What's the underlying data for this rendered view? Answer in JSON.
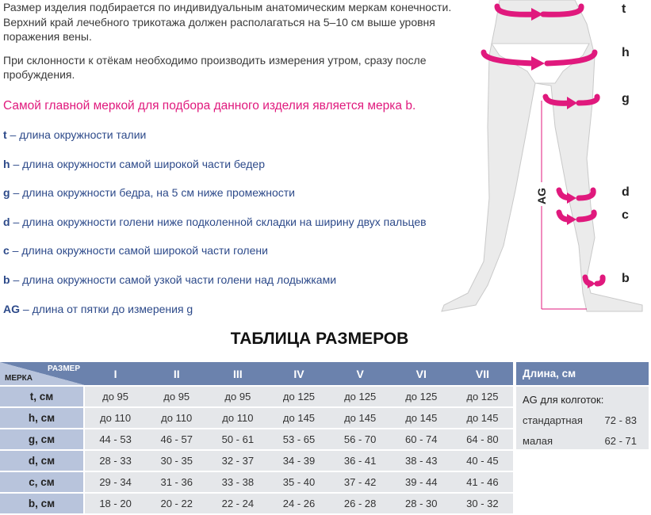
{
  "intro": {
    "p1": "Размер изделия подбирается по индивидуальным анатомическим меркам конечности. Верхний край лечебного трикотажа должен располагаться на 5–10 см выше уровня поражения вены.",
    "p2": "При склонности к отёкам необходимо производить измерения утром, сразу после пробуждения."
  },
  "key_note": "Самой главной меркой для подбора данного изделия является мерка b.",
  "legend": [
    {
      "code": "t",
      "text": " – длина окружности талии"
    },
    {
      "code": "h",
      "text": " – длина окружности самой широкой части бедер"
    },
    {
      "code": "g",
      "text": " – длина окружности бедра, на 5 см ниже промежности"
    },
    {
      "code": "d",
      "text": " – длина окружности голени ниже подколенной складки на ширину двух пальцев"
    },
    {
      "code": "c",
      "text": " – длина окружности самой широкой части голени"
    },
    {
      "code": "b",
      "text": " – длина окружности самой узкой части голени над лодыжками"
    },
    {
      "code": "AG",
      "text": " – длина от пятки до измерения g"
    }
  ],
  "figure": {
    "labels": [
      "t",
      "h",
      "g",
      "d",
      "c",
      "b"
    ],
    "ag_label": "AG",
    "accent": "#e0197d"
  },
  "table_title": "ТАБЛИЦА РАЗМЕРОВ",
  "size_table": {
    "corner_size": "РАЗМЕР",
    "corner_measure": "МЕРКА",
    "sizes": [
      "I",
      "II",
      "III",
      "IV",
      "V",
      "VI",
      "VII"
    ],
    "rows": [
      {
        "label": "t, см",
        "values": [
          "до 95",
          "до 95",
          "до 95",
          "до 125",
          "до 125",
          "до 125",
          "до 125"
        ]
      },
      {
        "label": "h, см",
        "values": [
          "до 110",
          "до 110",
          "до 110",
          "до 145",
          "до 145",
          "до 145",
          "до 145"
        ]
      },
      {
        "label": "g, см",
        "values": [
          "44 - 53",
          "46 - 57",
          "50 - 61",
          "53 - 65",
          "56 - 70",
          "60 - 74",
          "64 - 80"
        ]
      },
      {
        "label": "d, см",
        "values": [
          "28 - 33",
          "30 - 35",
          "32 - 37",
          "34 - 39",
          "36 - 41",
          "38 - 43",
          "40 - 45"
        ]
      },
      {
        "label": "c, см",
        "values": [
          "29 - 34",
          "31 - 36",
          "33 - 38",
          "35 - 40",
          "37 - 42",
          "39 - 44",
          "41 - 46"
        ]
      },
      {
        "label": "b, см",
        "values": [
          "18 - 20",
          "20 - 22",
          "22 - 24",
          "24 - 26",
          "26 - 28",
          "28 - 30",
          "30 - 32"
        ]
      }
    ],
    "header_color": "#6b82ad",
    "label_color": "#b8c4dc",
    "cell_color": "#e5e7ea"
  },
  "length_table": {
    "header": "Длина, см",
    "subtitle": "AG для колготок:",
    "rows": [
      {
        "label": "стандартная",
        "value": "72 - 83"
      },
      {
        "label": "малая",
        "value": "62 - 71"
      }
    ]
  }
}
